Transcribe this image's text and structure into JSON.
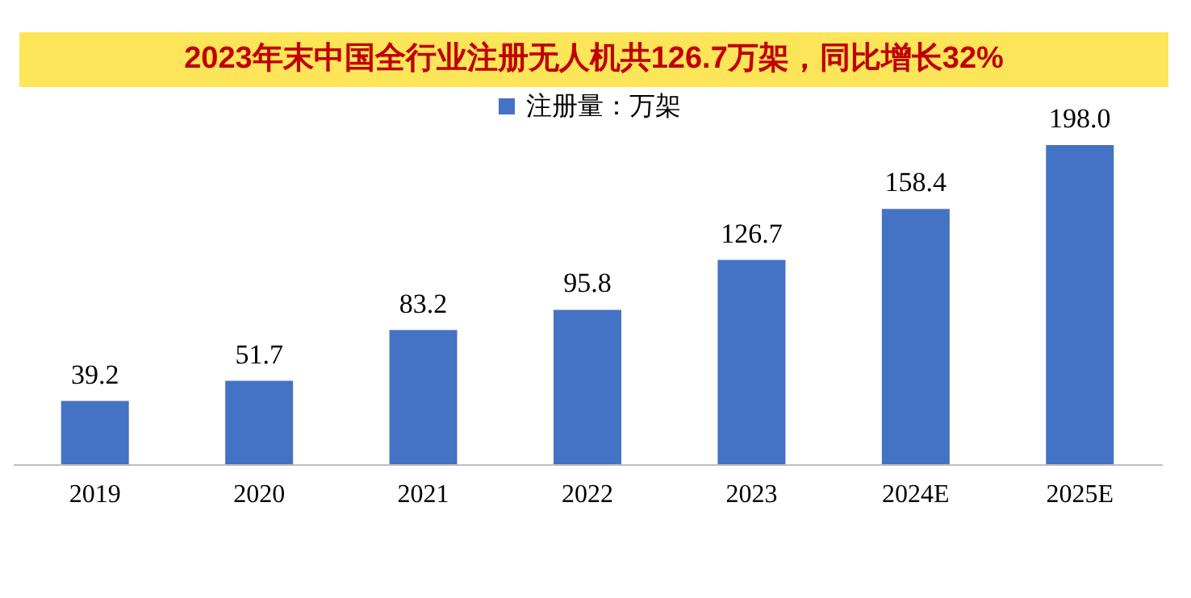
{
  "chart_data": {
    "type": "bar",
    "title": "2023年末中国全行业注册无人机共126.7万架，同比增长32%",
    "categories": [
      "2019",
      "2020",
      "2021",
      "2022",
      "2023",
      "2024E",
      "2025E"
    ],
    "series": [
      {
        "name": "注册量：万架",
        "color": "#4472c4",
        "values": [
          39.2,
          51.7,
          83.2,
          95.8,
          126.7,
          158.4,
          198.0
        ],
        "value_labels": [
          "39.2",
          "51.7",
          "83.2",
          "95.8",
          "126.7",
          "158.4",
          "198.0"
        ]
      }
    ],
    "legend": "top",
    "grid": false
  }
}
